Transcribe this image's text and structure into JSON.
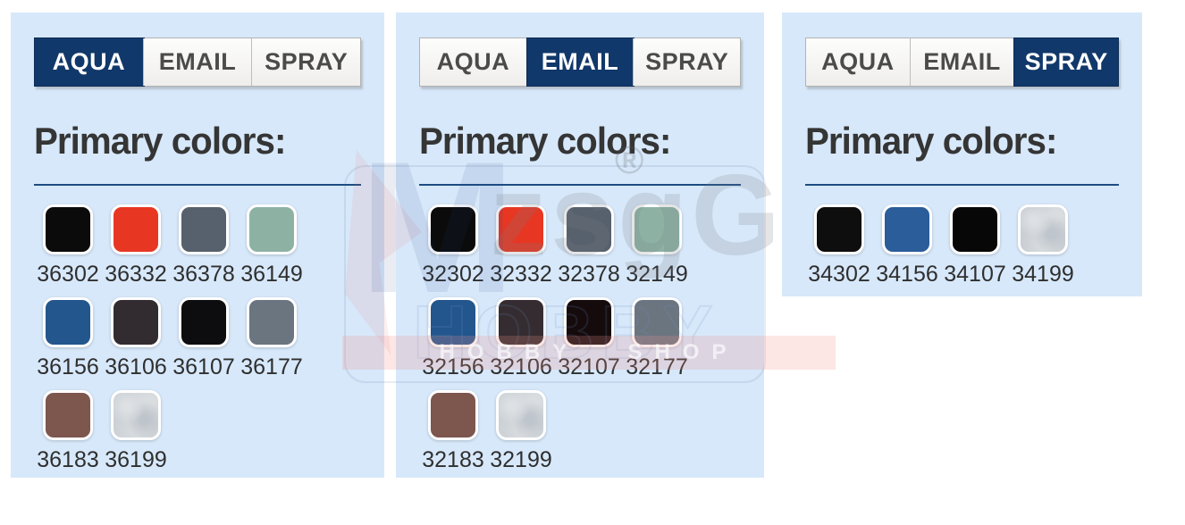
{
  "panels": [
    {
      "heading": "Primary colors:",
      "tabs": [
        {
          "label": "AQUA",
          "active": true
        },
        {
          "label": "EMAIL",
          "active": false
        },
        {
          "label": "SPRAY",
          "active": false
        }
      ],
      "swatches": [
        {
          "code": "36302",
          "color": "#0b0b0b"
        },
        {
          "code": "36332",
          "color": "#e73723"
        },
        {
          "code": "36378",
          "color": "#57616d"
        },
        {
          "code": "36149",
          "color": "#8db2a4"
        },
        {
          "code": "36156",
          "color": "#23568d"
        },
        {
          "code": "36106",
          "color": "#322c31"
        },
        {
          "code": "36107",
          "color": "#0d0c0e"
        },
        {
          "code": "36177",
          "color": "#6b7580"
        },
        {
          "code": "36183",
          "color": "#7d564e"
        },
        {
          "code": "36199",
          "color": "#ccd1d6",
          "metallic": true
        }
      ]
    },
    {
      "heading": "Primary colors:",
      "tabs": [
        {
          "label": "AQUA",
          "active": false
        },
        {
          "label": "EMAIL",
          "active": true
        },
        {
          "label": "SPRAY",
          "active": false
        }
      ],
      "swatches": [
        {
          "code": "32302",
          "color": "#0b0b0b"
        },
        {
          "code": "32332",
          "color": "#e73723"
        },
        {
          "code": "32378",
          "color": "#57616d"
        },
        {
          "code": "32149",
          "color": "#8db2a4"
        },
        {
          "code": "32156",
          "color": "#23568d"
        },
        {
          "code": "32106",
          "color": "#342c30"
        },
        {
          "code": "32107",
          "color": "#150b0d"
        },
        {
          "code": "32177",
          "color": "#6b7580"
        },
        {
          "code": "32183",
          "color": "#7d564e"
        },
        {
          "code": "32199",
          "color": "#ccd1d6",
          "metallic": true
        }
      ]
    },
    {
      "heading": "Primary colors:",
      "tabs": [
        {
          "label": "AQUA",
          "active": false
        },
        {
          "label": "EMAIL",
          "active": false
        },
        {
          "label": "SPRAY",
          "active": true
        }
      ],
      "swatches": [
        {
          "code": "34302",
          "color": "#0e0e0e"
        },
        {
          "code": "34156",
          "color": "#2a5d99"
        },
        {
          "code": "34107",
          "color": "#070707"
        },
        {
          "code": "34199",
          "color": "#c9ced4",
          "metallic": true
        }
      ]
    }
  ],
  "watermark": {
    "registered_mark": "®",
    "big_letters": "zsgG",
    "hobby_outline": "HOBBY",
    "band_text": "HOBBY SHOP",
    "accent_navy": "#11386a",
    "accent_red": "#e73723",
    "panel_blue": "#d7e8fa"
  }
}
